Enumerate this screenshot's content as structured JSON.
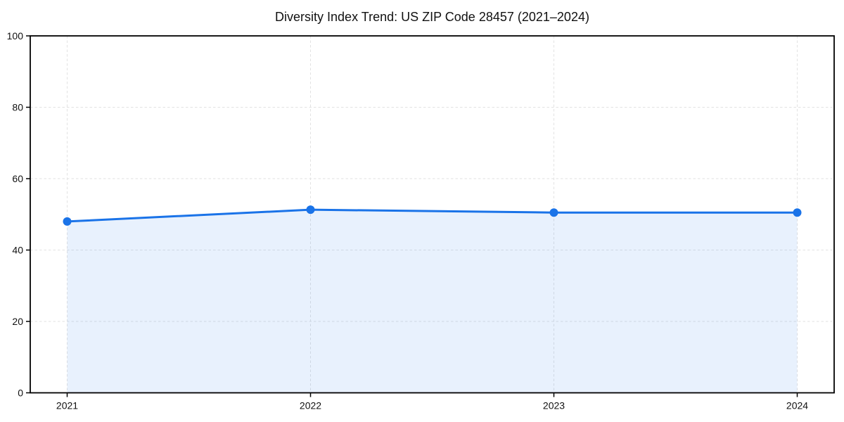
{
  "chart_data": {
    "type": "line",
    "title": "Diversity Index Trend: US ZIP Code 28457 (2021–2024)",
    "categories": [
      "2021",
      "2022",
      "2023",
      "2024"
    ],
    "series": [
      {
        "name": "Diversity Index",
        "values": [
          48.0,
          51.3,
          50.5,
          50.5
        ]
      }
    ],
    "xlabel": "",
    "ylabel": "",
    "ylim": [
      0,
      100
    ],
    "y_ticks": [
      0,
      20,
      40,
      60,
      80,
      100
    ],
    "grid": true,
    "grid_style": "dashed",
    "legend_position": "none",
    "marker": "circle",
    "area_fill": true,
    "colors": {
      "line": "#1a73e8",
      "marker": "#1a73e8",
      "area": "#1a73e8",
      "area_opacity": 0.1,
      "grid": "#e2e2e2",
      "spine": "#000000",
      "tick_text": "#111111",
      "background": "#ffffff"
    }
  }
}
